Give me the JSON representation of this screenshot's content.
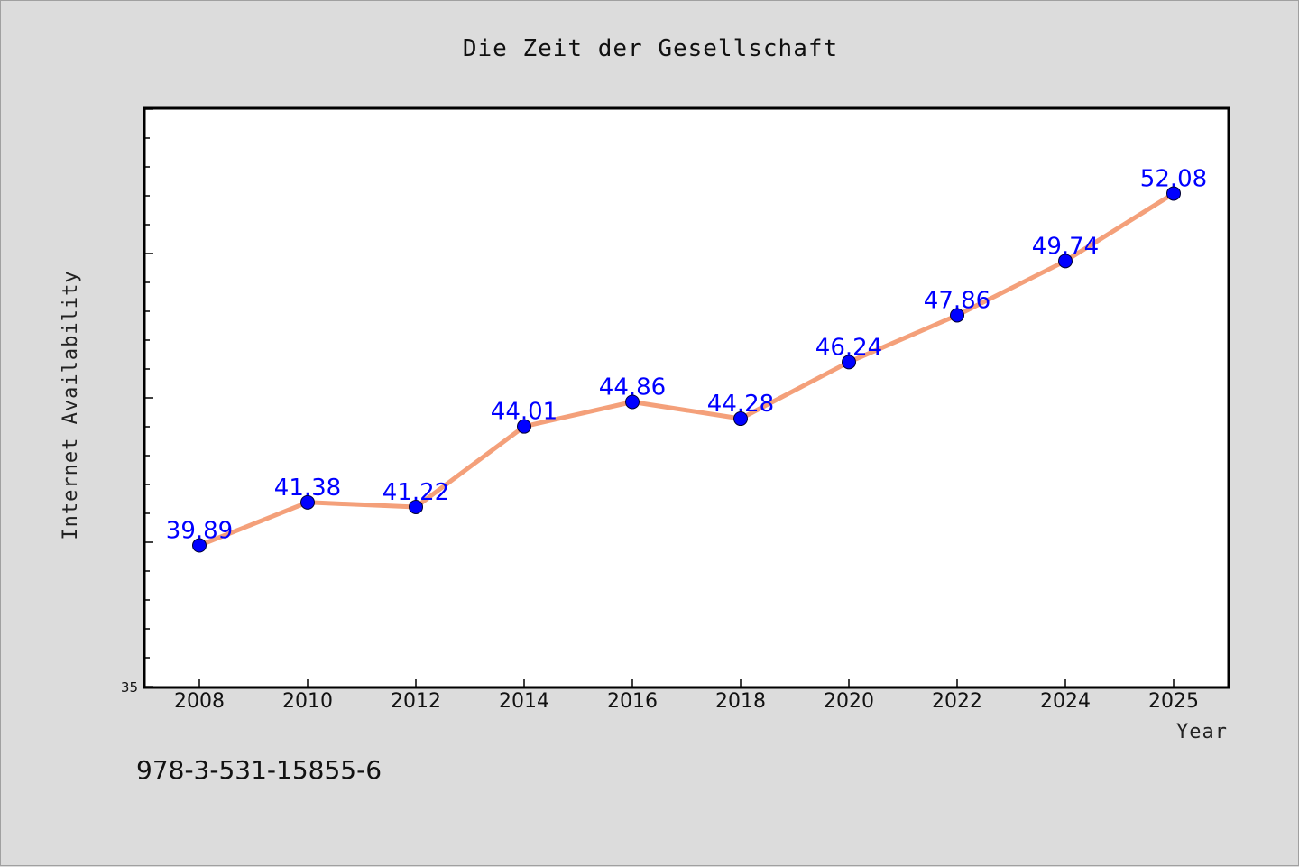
{
  "chart_data": {
    "type": "line",
    "title": "Die Zeit der Gesellschaft",
    "xlabel": "Year",
    "ylabel": "Internet Availability",
    "x": [
      "2008",
      "2010",
      "2012",
      "2014",
      "2016",
      "2018",
      "2020",
      "2022",
      "2024",
      "2025"
    ],
    "series": [
      {
        "values": [
          39.89,
          41.38,
          41.22,
          44.01,
          44.86,
          44.28,
          46.24,
          47.86,
          49.74,
          52.08
        ],
        "data_labels": [
          "39.89",
          "41.38",
          "41.22",
          "44.01",
          "44.86",
          "44.28",
          "46.24",
          "47.86",
          "49.74",
          "52.08"
        ],
        "line_color": "#f4a07a",
        "marker_color": "#0000ff"
      }
    ],
    "ylim": [
      35,
      55
    ],
    "y_tick_label": "35",
    "grid": false,
    "legend": "none"
  },
  "footer": {
    "isbn": "978-3-531-15855-6"
  }
}
